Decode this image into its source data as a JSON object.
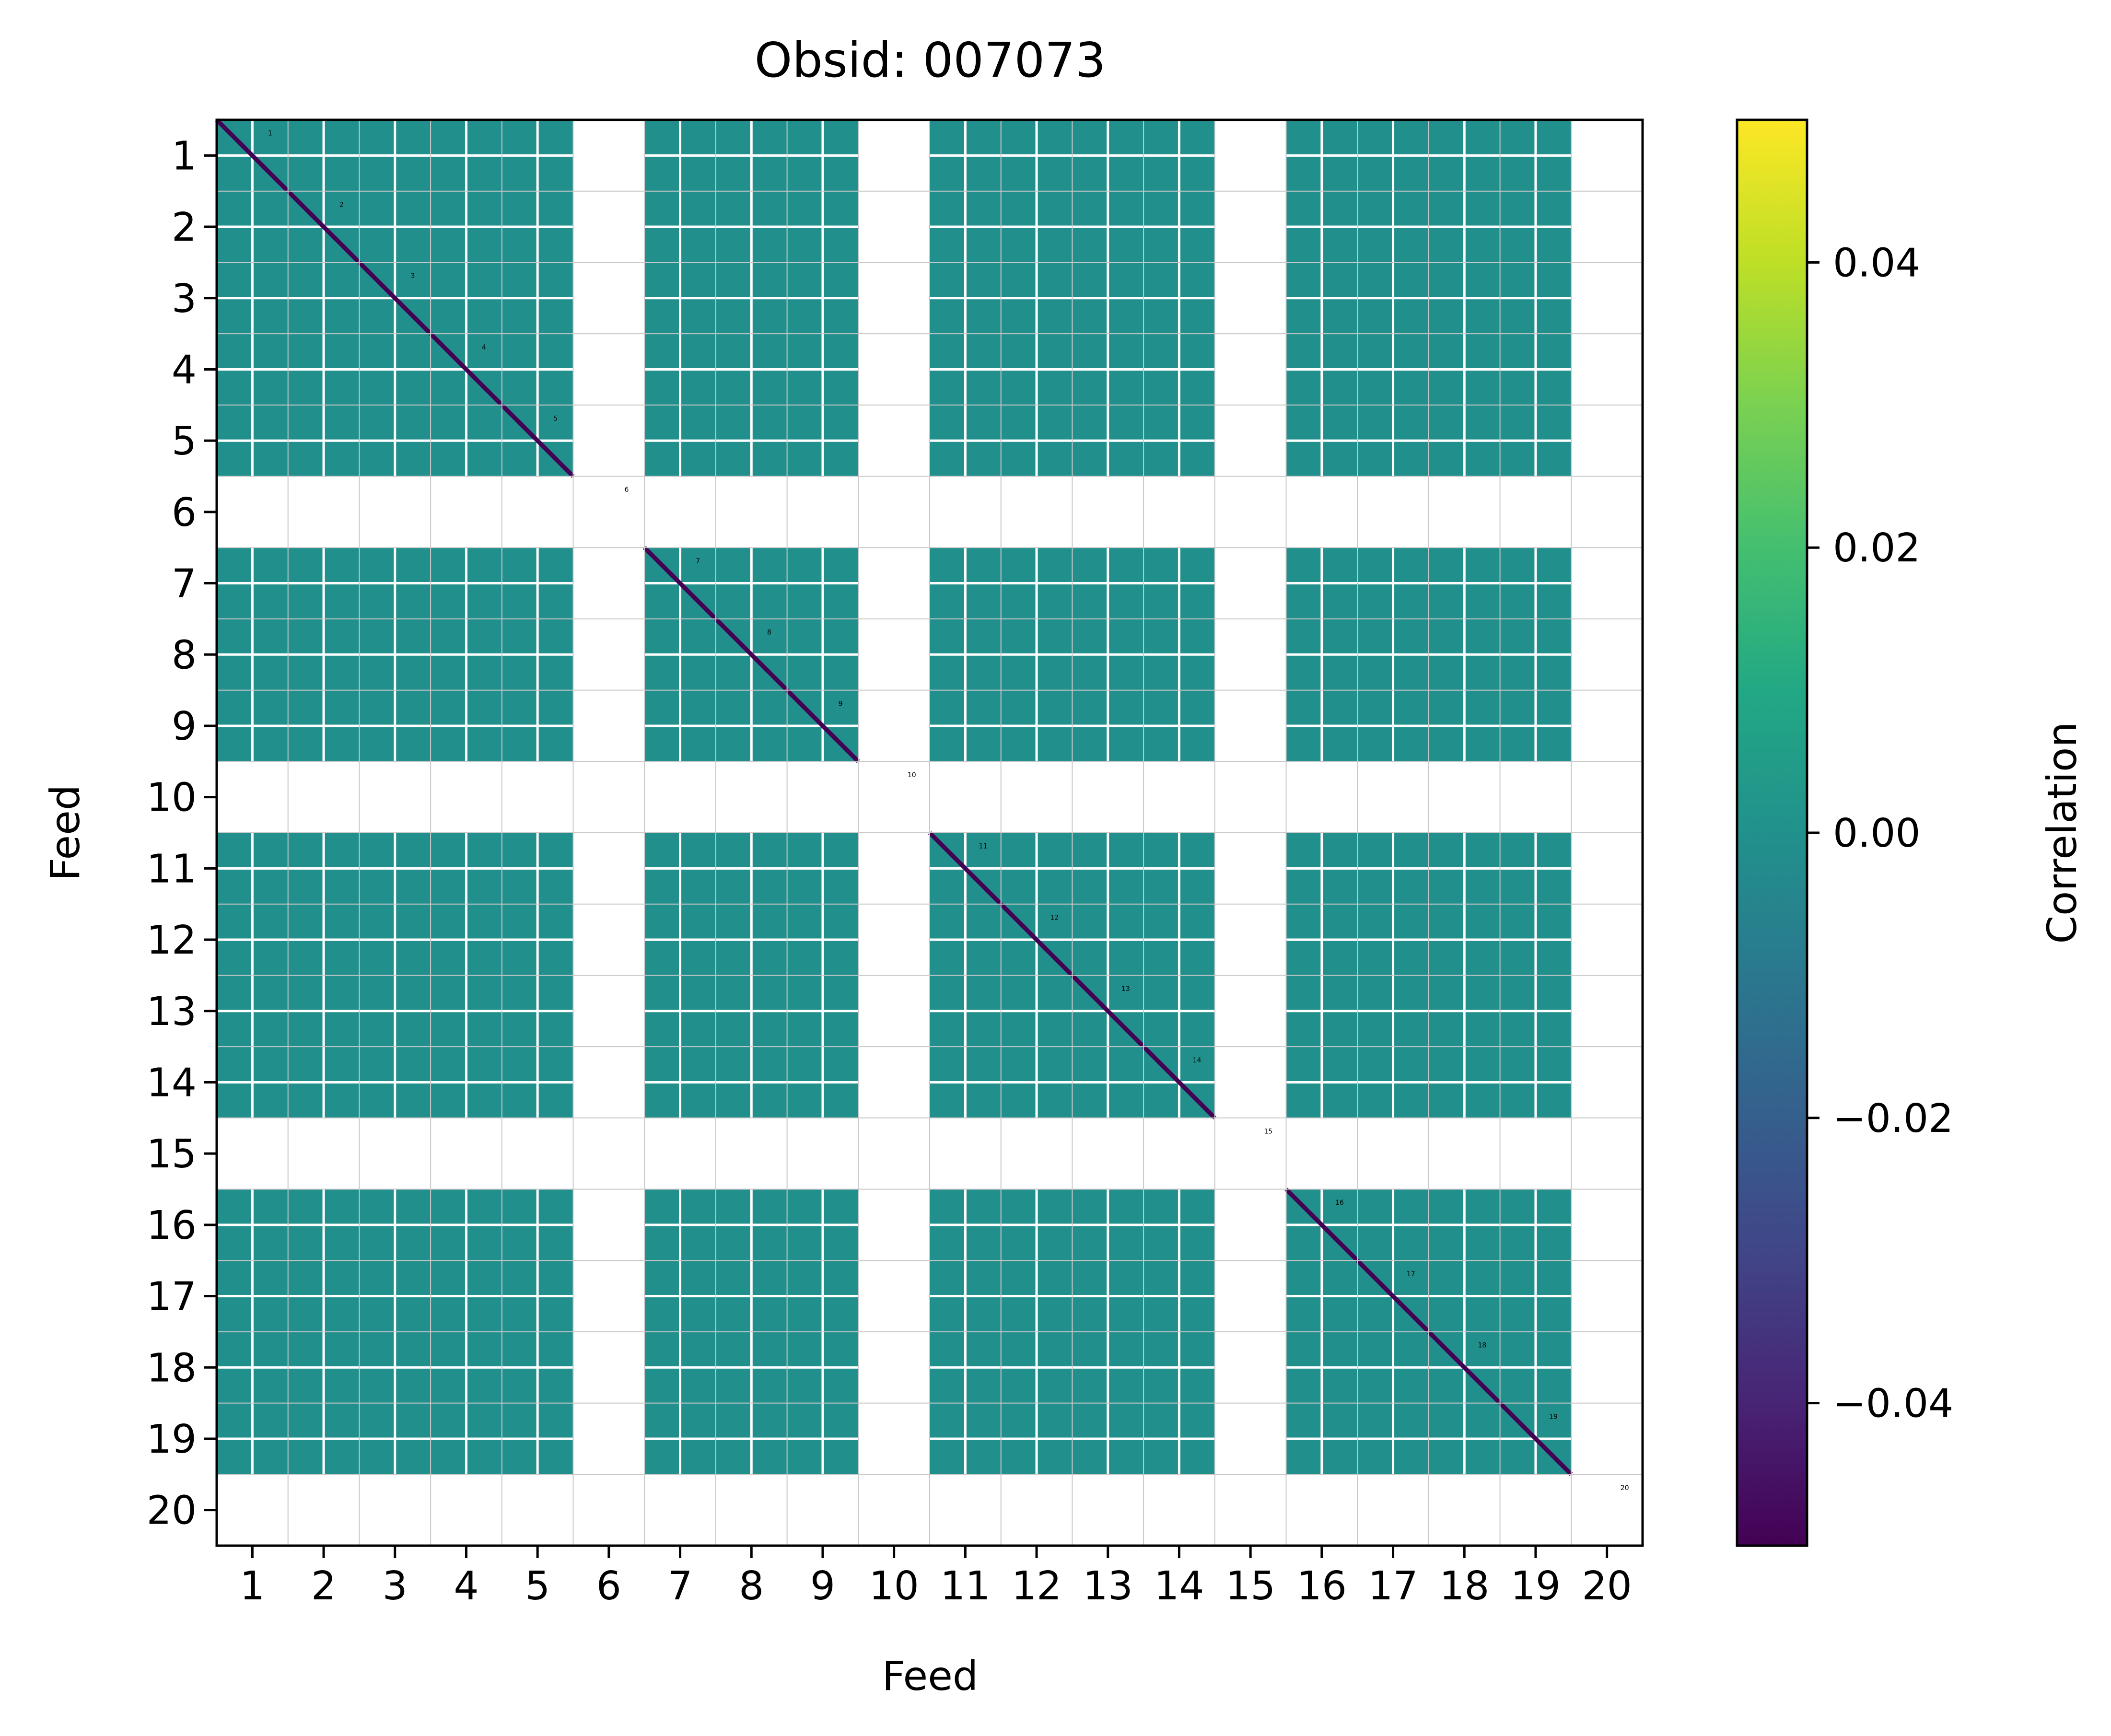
{
  "chart_data": {
    "type": "heatmap",
    "title": "Obsid: 007073",
    "xlabel": "Feed",
    "ylabel": "Feed",
    "x_ticks": [
      "1",
      "2",
      "3",
      "4",
      "5",
      "6",
      "7",
      "8",
      "9",
      "10",
      "11",
      "12",
      "13",
      "14",
      "15",
      "16",
      "17",
      "18",
      "19",
      "20"
    ],
    "y_ticks": [
      "1",
      "2",
      "3",
      "4",
      "5",
      "6",
      "7",
      "8",
      "9",
      "10",
      "11",
      "12",
      "13",
      "14",
      "15",
      "16",
      "17",
      "18",
      "19",
      "20"
    ],
    "feeds": [
      1,
      2,
      3,
      4,
      5,
      6,
      7,
      8,
      9,
      10,
      11,
      12,
      13,
      14,
      15,
      16,
      17,
      18,
      19,
      20
    ],
    "colorbar": {
      "label": "Correlation",
      "colormap": "viridis",
      "range": [
        -0.05,
        0.05
      ],
      "ticks": [
        -0.04,
        -0.02,
        0.0,
        0.02,
        0.04
      ],
      "tick_labels": [
        "−0.04",
        "−0.02",
        "0.00",
        "0.02",
        "0.04"
      ]
    },
    "missing_feeds": [
      6,
      10,
      15,
      20
    ],
    "offdiagonal_value": 0.0,
    "diagonal_value": -0.05,
    "grid": true,
    "colors": {
      "offdiagonal": "#21908d",
      "diagonal": "#440154",
      "empty": "#ffffff",
      "grid": "#c8c8c8"
    }
  }
}
